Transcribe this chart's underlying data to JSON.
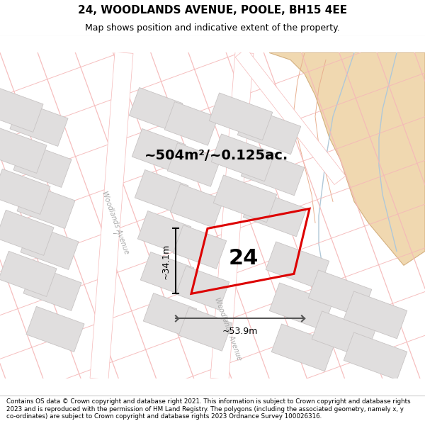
{
  "title": "24, WOODLANDS AVENUE, POOLE, BH15 4EE",
  "subtitle": "Map shows position and indicative extent of the property.",
  "footer": "Contains OS data © Crown copyright and database right 2021. This information is subject to Crown copyright and database rights 2023 and is reproduced with the permission of HM Land Registry. The polygons (including the associated geometry, namely x, y co-ordinates) are subject to Crown copyright and database rights 2023 Ordnance Survey 100026316.",
  "area_label": "~504m²/~0.125ac.",
  "width_label": "~53.9m",
  "height_label": "~34.1m",
  "plot_number": "24",
  "map_bg": "#ffffff",
  "block_fill": "#e0dede",
  "block_edge": "#c8c4c4",
  "road_fill": "#ffffff",
  "pink": "#f5b8b8",
  "red": "#dd0000",
  "sand_fill": "#f0d8b0",
  "sand_edge": "#d4b080",
  "water_fill": "#c8dce8",
  "water_edge": "#90b8cc",
  "dim_color": "#555555",
  "street_color": "#aaaaaa",
  "title_fs": 11,
  "subtitle_fs": 9,
  "footer_fs": 6.3,
  "area_fs": 14,
  "dim_fs": 9,
  "num_fs": 22,
  "street_fs": 7
}
